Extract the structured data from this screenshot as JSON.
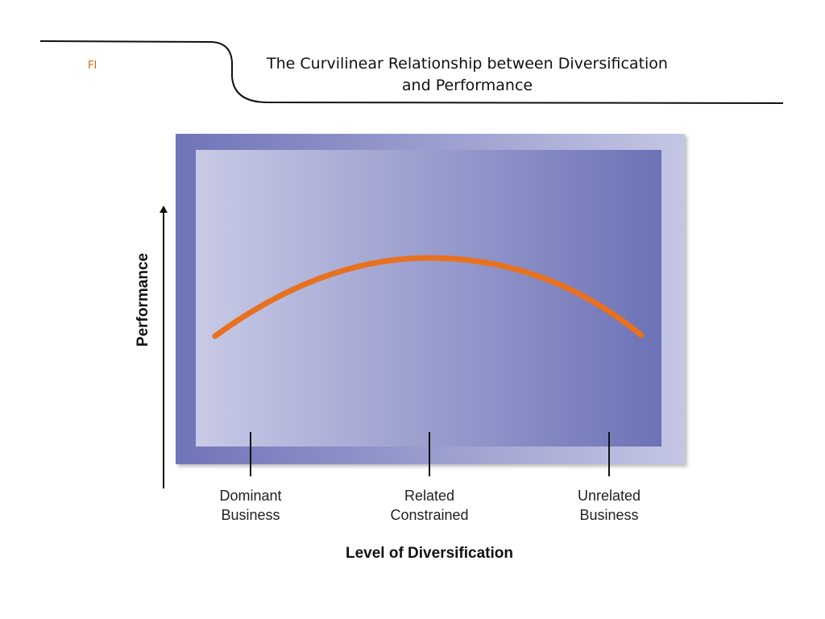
{
  "slide": {
    "corner_label": "FI",
    "title": "The Curvilinear Relationship between Diversification\nand Performance"
  },
  "diagram": {
    "y_axis_label": "Performance",
    "x_axis_label": "Level of Diversification",
    "categories": [
      {
        "label": "Dominant\nBusiness"
      },
      {
        "label": "Related\nConstrained"
      },
      {
        "label": "Unrelated\nBusiness"
      }
    ],
    "curve_color": "#e8711f",
    "panel_colors": {
      "outer_dark": "#6f74b8",
      "outer_light": "#c4c6e4",
      "inner_light": "#c8cae6",
      "inner_dark": "#6c72b6"
    },
    "accent_color": "#d9630c"
  }
}
